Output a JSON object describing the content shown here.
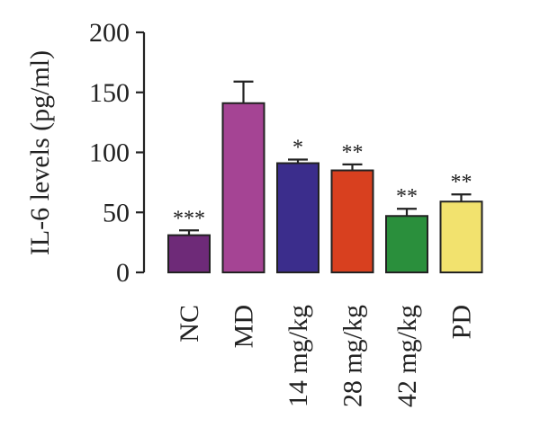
{
  "chart_data": {
    "type": "bar",
    "categories": [
      "NC",
      "MD",
      "14 mg/kg",
      "28 mg/kg",
      "42 mg/kg",
      "PD"
    ],
    "values": [
      31,
      141,
      91,
      85,
      47,
      59
    ],
    "errors": [
      4,
      18,
      3,
      5,
      6,
      6
    ],
    "significance": [
      "***",
      "",
      "*",
      "**",
      "**",
      "**"
    ],
    "colors": [
      "#6e2a78",
      "#a54494",
      "#3b2d8c",
      "#d8401f",
      "#2a8f3c",
      "#f2e26e"
    ],
    "title": "",
    "xlabel": "",
    "ylabel": "IL-6 levels (pg/ml)",
    "ylim": [
      0,
      200
    ],
    "yticks": [
      0,
      50,
      100,
      150,
      200
    ],
    "grid": false
  }
}
